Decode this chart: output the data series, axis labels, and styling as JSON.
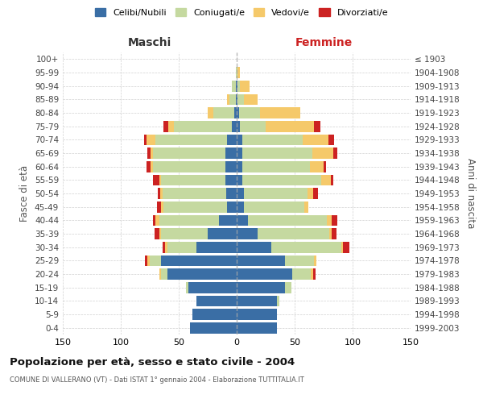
{
  "age_groups": [
    "0-4",
    "5-9",
    "10-14",
    "15-19",
    "20-24",
    "25-29",
    "30-34",
    "35-39",
    "40-44",
    "45-49",
    "50-54",
    "55-59",
    "60-64",
    "65-69",
    "70-74",
    "75-79",
    "80-84",
    "85-89",
    "90-94",
    "95-99",
    "100+"
  ],
  "birth_years": [
    "1999-2003",
    "1994-1998",
    "1989-1993",
    "1984-1988",
    "1979-1983",
    "1974-1978",
    "1969-1973",
    "1964-1968",
    "1959-1963",
    "1954-1958",
    "1949-1953",
    "1944-1948",
    "1939-1943",
    "1934-1938",
    "1929-1933",
    "1924-1928",
    "1919-1923",
    "1914-1918",
    "1909-1913",
    "1904-1908",
    "≤ 1903"
  ],
  "male": {
    "celibi": [
      40,
      38,
      35,
      42,
      60,
      65,
      35,
      25,
      15,
      8,
      9,
      10,
      10,
      10,
      8,
      4,
      2,
      1,
      1,
      0,
      0
    ],
    "coniugati": [
      0,
      0,
      0,
      2,
      5,
      10,
      25,
      40,
      52,
      55,
      55,
      55,
      62,
      62,
      62,
      50,
      18,
      5,
      3,
      1,
      0
    ],
    "vedovi": [
      0,
      0,
      0,
      0,
      2,
      2,
      2,
      2,
      3,
      2,
      2,
      2,
      2,
      2,
      8,
      5,
      5,
      2,
      0,
      0,
      0
    ],
    "divorziati": [
      0,
      0,
      0,
      0,
      0,
      2,
      2,
      4,
      2,
      4,
      2,
      5,
      4,
      3,
      2,
      4,
      0,
      0,
      0,
      0,
      0
    ]
  },
  "female": {
    "nubili": [
      35,
      35,
      35,
      42,
      48,
      42,
      30,
      18,
      10,
      6,
      6,
      5,
      5,
      5,
      5,
      3,
      2,
      1,
      1,
      0,
      0
    ],
    "coniugate": [
      0,
      0,
      2,
      5,
      16,
      25,
      60,
      62,
      68,
      52,
      55,
      68,
      58,
      60,
      52,
      22,
      18,
      5,
      2,
      1,
      0
    ],
    "vedove": [
      0,
      0,
      0,
      0,
      2,
      2,
      2,
      2,
      4,
      4,
      5,
      8,
      12,
      18,
      22,
      42,
      35,
      12,
      8,
      2,
      0
    ],
    "divorziate": [
      0,
      0,
      0,
      0,
      2,
      0,
      5,
      4,
      5,
      0,
      4,
      2,
      2,
      4,
      5,
      5,
      0,
      0,
      0,
      0,
      0
    ]
  },
  "colors": {
    "celibi": "#3A6EA5",
    "coniugati": "#C5D9A0",
    "vedovi": "#F5C96A",
    "divorziati": "#CC2222"
  },
  "title": "Popolazione per età, sesso e stato civile - 2004",
  "subtitle": "COMUNE DI VALLERANO (VT) - Dati ISTAT 1° gennaio 2004 - Elaborazione TUTTITALIA.IT",
  "xlabel_left": "Maschi",
  "xlabel_right": "Femmine",
  "ylabel_left": "Fasce di età",
  "ylabel_right": "Anni di nascita",
  "xlim": 150,
  "legend_labels": [
    "Celibi/Nubili",
    "Coniugati/e",
    "Vedovi/e",
    "Divorziati/e"
  ],
  "background_color": "#ffffff",
  "grid_color": "#cccccc"
}
